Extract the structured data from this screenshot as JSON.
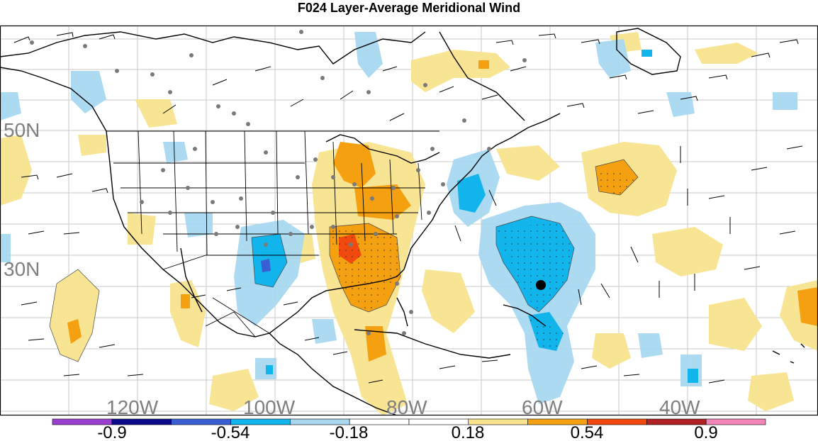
{
  "title": "F024 Layer-Average Meridional Wind",
  "lat_labels": [
    "50N",
    "30N"
  ],
  "lon_labels": [
    "120W",
    "100W",
    "80W",
    "60W",
    "40W"
  ],
  "colorbar": {
    "colors": [
      "#9b3fd1",
      "#0a0a8c",
      "#3a5ed4",
      "#12b4ec",
      "#a8d8f0",
      "#ffffff",
      "#ffffff",
      "#f8e48e",
      "#f5a011",
      "#f24a0e",
      "#b02222",
      "#f386b8"
    ],
    "tick_labels": [
      "-0.9",
      "-0.54",
      "-0.18",
      "0.18",
      "0.54",
      "0.9"
    ]
  },
  "markers": {
    "storm_center": "black-dot"
  }
}
